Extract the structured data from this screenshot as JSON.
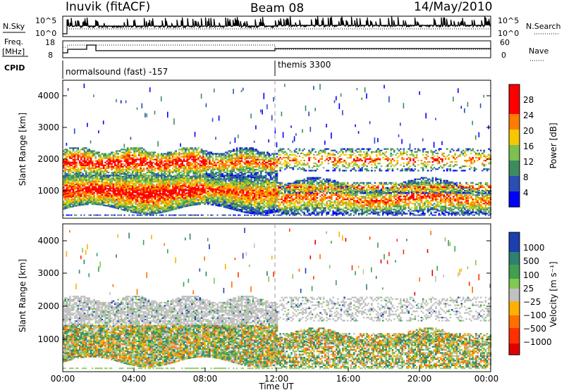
{
  "header": {
    "station": "Inuvik (fitACF)",
    "beam": "Beam 08",
    "date": "14/May/2010"
  },
  "params": {
    "nsky_label": "N.Sky",
    "nsearch_label": "N.Search",
    "freq_label_line1": "Freq.",
    "freq_label_line2": "[MHz]",
    "nave_label": "Nave",
    "cpid_label": "CPID",
    "nsky_ticks": [
      "10^5",
      "10^0"
    ],
    "nsearch_ticks": [
      "10^5",
      "10^0"
    ],
    "freq_ticks": [
      "18",
      "8"
    ],
    "nave_ticks": [
      "60",
      "0"
    ],
    "cpid_segments": [
      {
        "start_hr": 0,
        "label": "normalsound (fast) -157"
      },
      {
        "start_hr": 12,
        "label": "themis 3300"
      }
    ]
  },
  "chart_data": [
    {
      "type": "heatmap",
      "title": "",
      "ylabel": "Slant Range [km]",
      "xlabel": "",
      "xlim_hr": [
        0,
        24
      ],
      "ylim": [
        180,
        4500
      ],
      "yticks": [
        "1000",
        "2000",
        "3000",
        "4000"
      ],
      "colorbar": {
        "label": "Power [dB]",
        "ticks": [
          "4",
          "8",
          "12",
          "16",
          "20",
          "24",
          "28"
        ],
        "colors": [
          "#0000ff",
          "#2a4fb4",
          "#3c8c60",
          "#7cc050",
          "#f5c800",
          "#ff7c00",
          "#ff0000"
        ]
      },
      "echo_bands": [
        {
          "t0": 0.0,
          "t1": 12.0,
          "r0": 450,
          "r1": 1500,
          "level": "high"
        },
        {
          "t0": 0.0,
          "t1": 12.0,
          "r0": 1500,
          "r1": 2300,
          "level": "medium"
        },
        {
          "t0": 12.0,
          "t1": 24.0,
          "r0": 300,
          "r1": 1300,
          "level": "medium"
        },
        {
          "t0": 12.0,
          "t1": 24.0,
          "r0": 1600,
          "r1": 2400,
          "level": "low"
        }
      ]
    },
    {
      "type": "heatmap",
      "title": "",
      "ylabel": "Slant Range [km]",
      "xlabel": "Time UT",
      "xlim_hr": [
        0,
        24
      ],
      "ylim": [
        180,
        4500
      ],
      "yticks": [
        "1000",
        "2000",
        "3000",
        "4000"
      ],
      "xticks": [
        "00:00",
        "04:00",
        "08:00",
        "12:00",
        "16:00",
        "20:00",
        "00:00"
      ],
      "colorbar": {
        "label": "Velocity [m s⁻¹]",
        "ticks": [
          "1000",
          "500",
          "100",
          "25",
          "−25",
          "−100",
          "−500",
          "−1000"
        ],
        "colors": [
          "#1c3fb0",
          "#2f8070",
          "#3fa050",
          "#80c850",
          "#c0c0c0",
          "#ffb000",
          "#ff7000",
          "#ff3000",
          "#e00000"
        ]
      }
    }
  ]
}
